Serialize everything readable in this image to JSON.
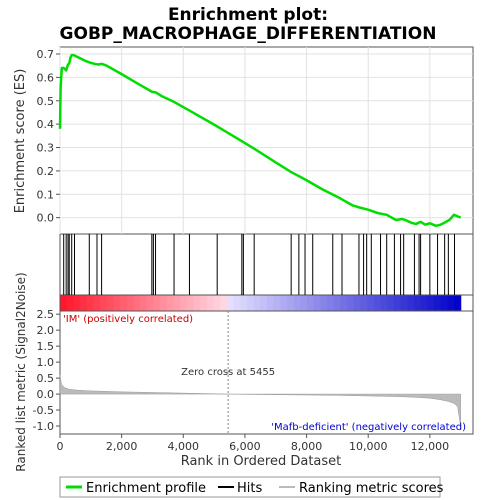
{
  "chart_data": {
    "type": "line",
    "title_line1": "Enrichment plot:",
    "title_line2": "GOBP_MACROPHAGE_DIFFERENTIATION",
    "top_ylabel": "Enrichment score (ES)",
    "bottom_ylabel": "Ranked list metric (Signal2Noise)",
    "xlabel": "Rank in Ordered Dataset",
    "xlim": [
      0,
      13400
    ],
    "es_ylim": [
      -0.07,
      0.73
    ],
    "metric_ylim": [
      -1.25,
      2.6
    ],
    "x_ticks": [
      {
        "v": 0,
        "label": "0"
      },
      {
        "v": 2000,
        "label": "2,000"
      },
      {
        "v": 4000,
        "label": "4,000"
      },
      {
        "v": 6000,
        "label": "6,000"
      },
      {
        "v": 8000,
        "label": "8,000"
      },
      {
        "v": 10000,
        "label": "10,000"
      },
      {
        "v": 12000,
        "label": "12,000"
      }
    ],
    "es_ticks": [
      {
        "v": 0.0,
        "label": "0.0"
      },
      {
        "v": 0.1,
        "label": "0.1"
      },
      {
        "v": 0.2,
        "label": "0.2"
      },
      {
        "v": 0.3,
        "label": "0.3"
      },
      {
        "v": 0.4,
        "label": "0.4"
      },
      {
        "v": 0.5,
        "label": "0.5"
      },
      {
        "v": 0.6,
        "label": "0.6"
      },
      {
        "v": 0.7,
        "label": "0.7"
      }
    ],
    "metric_ticks": [
      {
        "v": 2.5,
        "label": "2.5"
      },
      {
        "v": 2.0,
        "label": "2.0"
      },
      {
        "v": 1.5,
        "label": "1.5"
      },
      {
        "v": 1.0,
        "label": "1.0"
      },
      {
        "v": 0.5,
        "label": "0.5"
      },
      {
        "v": 0.0,
        "label": "0.0"
      },
      {
        "v": -0.5,
        "label": "-0.5"
      },
      {
        "v": -1.0,
        "label": "-1.0"
      }
    ],
    "enrichment_profile": {
      "x": [
        0,
        20,
        60,
        120,
        200,
        260,
        300,
        340,
        380,
        450,
        600,
        800,
        1000,
        1150,
        1250,
        1350,
        1500,
        2000,
        2500,
        2990,
        3100,
        3300,
        3700,
        4200,
        5000,
        5900,
        6300,
        7000,
        7500,
        8000,
        8500,
        9000,
        9500,
        9700,
        10000,
        10300,
        10600,
        10900,
        11100,
        11200,
        11400,
        11550,
        11700,
        11850,
        12000,
        12200,
        12350,
        12500,
        12650,
        12780,
        13000
      ],
      "y": [
        0.38,
        0.56,
        0.64,
        0.64,
        0.63,
        0.655,
        0.66,
        0.685,
        0.695,
        0.695,
        0.685,
        0.672,
        0.662,
        0.657,
        0.655,
        0.658,
        0.651,
        0.614,
        0.575,
        0.538,
        0.536,
        0.52,
        0.495,
        0.458,
        0.398,
        0.327,
        0.295,
        0.236,
        0.195,
        0.16,
        0.122,
        0.089,
        0.052,
        0.044,
        0.034,
        0.02,
        0.012,
        -0.01,
        -0.006,
        -0.01,
        -0.022,
        -0.027,
        -0.018,
        -0.03,
        -0.024,
        -0.035,
        -0.03,
        -0.02,
        -0.008,
        0.012,
        0.0
      ]
    },
    "hits": [
      120,
      200,
      260,
      300,
      380,
      470,
      950,
      1200,
      1350,
      2980,
      3030,
      3100,
      3700,
      4200,
      5100,
      5900,
      5950,
      6300,
      7500,
      7750,
      7950,
      8200,
      8850,
      9150,
      9700,
      9850,
      9950,
      10100,
      10400,
      10600,
      10850,
      11050,
      11150,
      11500,
      11650,
      11700,
      12000,
      12250,
      12480,
      12600,
      12800
    ],
    "metric_curve": {
      "x": [
        0,
        50,
        150,
        300,
        600,
        1000,
        2000,
        3000,
        4000,
        5000,
        5455,
        6000,
        7000,
        8000,
        9000,
        10000,
        11000,
        11500,
        12000,
        12300,
        12600,
        12800,
        12900,
        12950,
        13000
      ],
      "y": [
        0.6,
        0.3,
        0.2,
        0.15,
        0.12,
        0.1,
        0.07,
        0.05,
        0.03,
        0.01,
        0.0,
        -0.01,
        -0.02,
        -0.03,
        -0.04,
        -0.06,
        -0.08,
        -0.1,
        -0.13,
        -0.17,
        -0.23,
        -0.3,
        -0.4,
        -0.7,
        -1.05
      ]
    },
    "zero_cross_x": 5455,
    "zero_cross_label": "Zero cross at 5455",
    "pos_label": "'IM' (positively correlated)",
    "neg_label": "'Mafb-deficient' (negatively correlated)",
    "legend": [
      {
        "label": "Enrichment profile",
        "color": "#00dd00"
      },
      {
        "label": "Hits",
        "color": "#000000"
      },
      {
        "label": "Ranking metric scores",
        "color": "#bbbbbb"
      }
    ],
    "colors": {
      "profile": "#00dd00",
      "hits": "#000000",
      "metric": "#bbbbbb",
      "pos_text": "#cc0000",
      "neg_text": "#0000cc"
    }
  }
}
